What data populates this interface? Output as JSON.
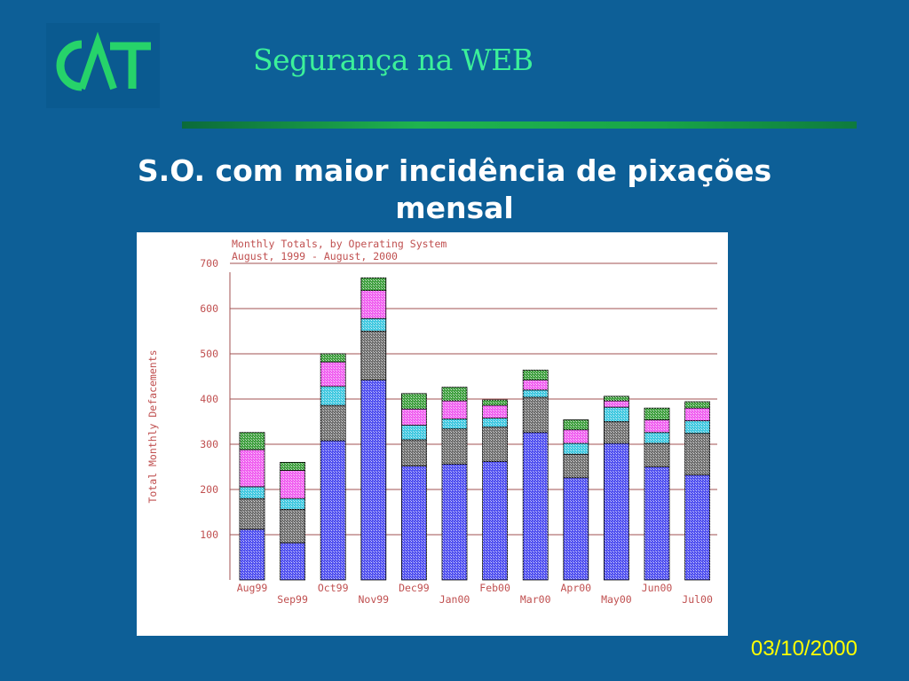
{
  "logo": {
    "text": "CAT"
  },
  "header": {
    "title": "Segurança na WEB"
  },
  "slide": {
    "title": "S.O. com maior incidência de pixações mensal"
  },
  "footer": {
    "date": "03/10/2000"
  },
  "colors": {
    "background": "#0d5f97",
    "header_title": "#3cf09a",
    "footer_date": "#ffff00",
    "chart_text": "#c05050",
    "gridline": "#a05050"
  },
  "chart_data": {
    "type": "bar",
    "stacked": true,
    "title": "Monthly Totals, by Operating System",
    "subtitle": "August, 1999 - August, 2000",
    "xlabel": "",
    "ylabel": "Total Monthly Defacements",
    "ylim": [
      0,
      700
    ],
    "yticks": [
      100,
      200,
      300,
      400,
      500,
      600,
      700
    ],
    "grid": true,
    "categories": [
      "Aug99",
      "Sep99",
      "Oct99",
      "Nov99",
      "Dec99",
      "Jan00",
      "Feb00",
      "Mar00",
      "Apr00",
      "May00",
      "Jun00",
      "Jul00"
    ],
    "x_tick_labels_top": [
      "Aug99",
      "Oct99",
      "Dec99",
      "Feb00",
      "Apr00",
      "Jun00"
    ],
    "x_tick_labels_bottom": [
      "Sep99",
      "Nov99",
      "Jan00",
      "Mar00",
      "May00",
      "Jul00"
    ],
    "series": [
      {
        "color": "#5050f0",
        "values": [
          112,
          82,
          308,
          442,
          252,
          256,
          262,
          326,
          226,
          302,
          250,
          232
        ]
      },
      {
        "color": "#707070",
        "values": [
          68,
          74,
          78,
          108,
          58,
          78,
          76,
          78,
          52,
          48,
          52,
          92
        ]
      },
      {
        "color": "#40c8e0",
        "values": [
          26,
          24,
          42,
          28,
          32,
          22,
          20,
          16,
          24,
          32,
          24,
          28
        ]
      },
      {
        "color": "#f060f0",
        "values": [
          82,
          62,
          54,
          62,
          36,
          40,
          28,
          22,
          30,
          14,
          28,
          28
        ]
      },
      {
        "color": "#40a040",
        "values": [
          38,
          18,
          18,
          28,
          34,
          30,
          12,
          22,
          22,
          10,
          26,
          14
        ]
      }
    ]
  }
}
